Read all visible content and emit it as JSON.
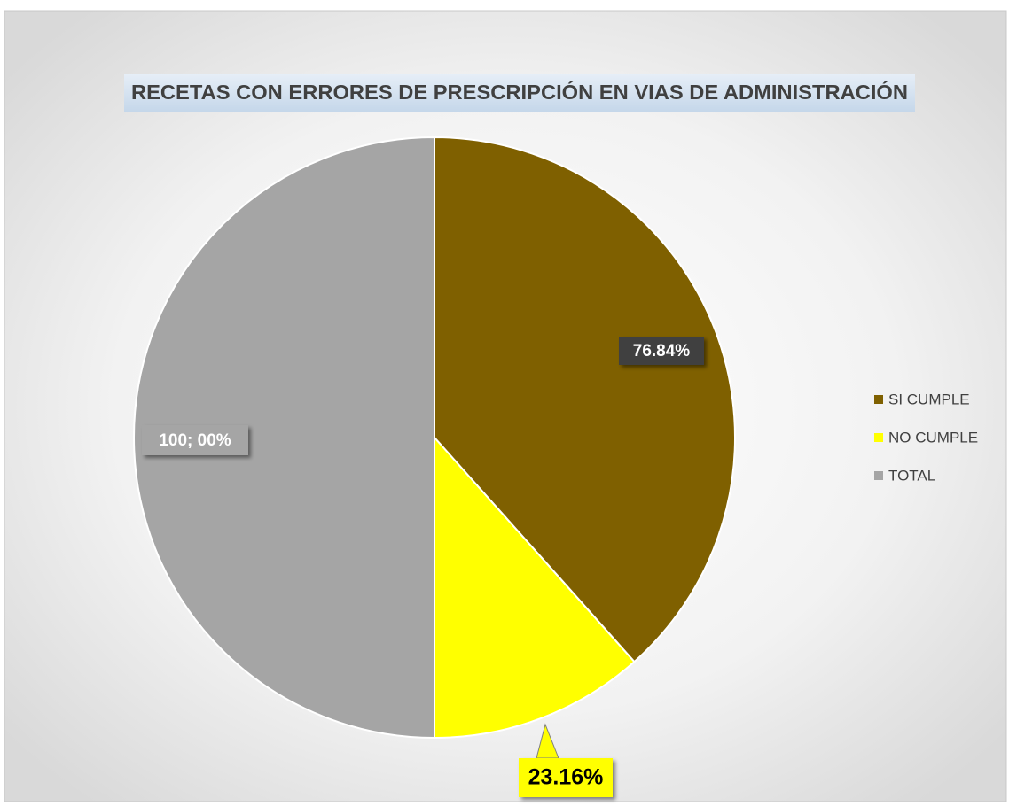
{
  "chart_data": {
    "type": "pie",
    "title": "RECETAS CON ERRORES DE PRESCRIPCIÓN  EN VIAS DE ADMINISTRACIÓN",
    "categories": [
      "SI CUMPLE",
      "NO CUMPLE",
      "TOTAL"
    ],
    "values": [
      76.84,
      23.16,
      100
    ],
    "value_labels": [
      "76.84%",
      "23.16%",
      "100; 00%"
    ],
    "colors": [
      "#7f6000",
      "#ffff00",
      "#a5a5a5"
    ],
    "legend": "right"
  }
}
